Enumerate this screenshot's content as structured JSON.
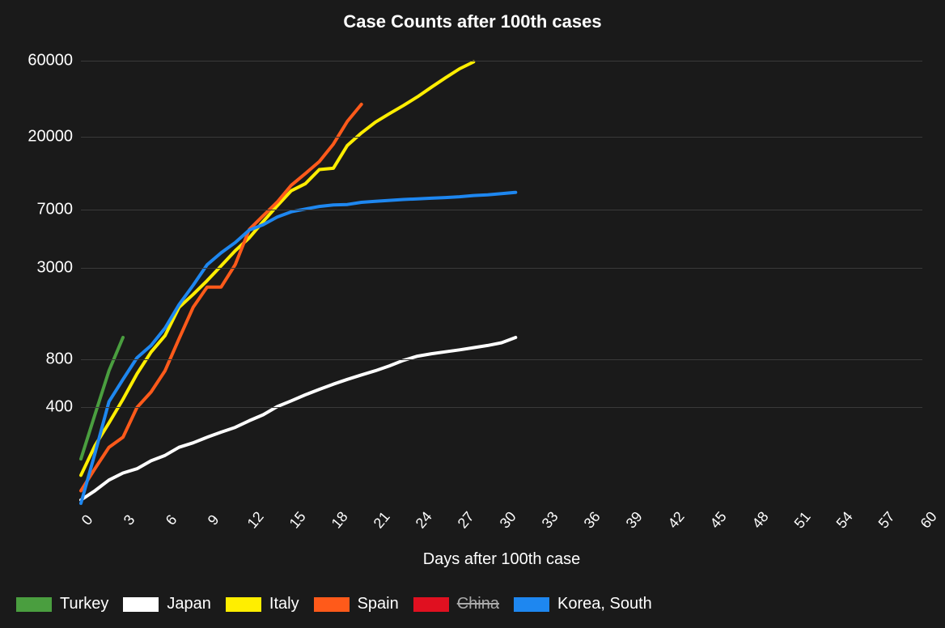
{
  "chart": {
    "type": "line",
    "title": "Case Counts after 100th cases",
    "title_fontsize": 22,
    "title_fontweight": 700,
    "background_color": "#1a1a1a",
    "grid_color": "#3a3a3a",
    "text_color": "#ffffff",
    "line_width": 4,
    "x_axis": {
      "title": "Days after 100th case",
      "title_fontsize": 20,
      "tick_fontsize": 18,
      "min": 0,
      "max": 60,
      "tick_step": 3,
      "ticks": [
        0,
        3,
        6,
        9,
        12,
        15,
        18,
        21,
        24,
        27,
        30,
        33,
        36,
        39,
        42,
        45,
        48,
        51,
        54,
        57,
        60
      ],
      "tick_rotation_deg": -50
    },
    "y_axis": {
      "scale": "log",
      "tick_fontsize": 20,
      "ticks": [
        400,
        800,
        3000,
        7000,
        20000,
        60000
      ],
      "min": 100,
      "max": 70000
    },
    "legend": {
      "position": "bottom",
      "swatch_width": 44,
      "swatch_height": 18,
      "fontsize": 20,
      "items": [
        {
          "label": "Turkey",
          "color": "#4a9e3f",
          "enabled": true
        },
        {
          "label": "Japan",
          "color": "#ffffff",
          "enabled": true
        },
        {
          "label": "Italy",
          "color": "#ffee00",
          "enabled": true
        },
        {
          "label": "Spain",
          "color": "#ff5a1a",
          "enabled": true
        },
        {
          "label": "China",
          "color": "#e01020",
          "enabled": false
        },
        {
          "label": "Korea, South",
          "color": "#1e87f0",
          "enabled": true
        }
      ]
    },
    "series": [
      {
        "name": "Turkey",
        "color": "#4a9e3f",
        "x": [
          0,
          1,
          2,
          3
        ],
        "y": [
          190,
          360,
          680,
          1100
        ]
      },
      {
        "name": "Japan",
        "color": "#ffffff",
        "x": [
          0,
          1,
          2,
          3,
          4,
          5,
          6,
          7,
          8,
          9,
          10,
          11,
          12,
          13,
          14,
          15,
          16,
          17,
          18,
          19,
          20,
          21,
          22,
          23,
          24,
          25,
          26,
          27,
          28,
          29,
          30,
          31
        ],
        "y": [
          105,
          120,
          140,
          155,
          165,
          185,
          200,
          225,
          240,
          260,
          280,
          300,
          330,
          360,
          405,
          440,
          480,
          520,
          560,
          600,
          640,
          680,
          730,
          790,
          840,
          870,
          895,
          920,
          950,
          980,
          1020,
          1100
        ]
      },
      {
        "name": "Italy",
        "color": "#ffee00",
        "x": [
          0,
          1,
          2,
          3,
          4,
          5,
          6,
          7,
          8,
          9,
          10,
          11,
          12,
          13,
          14,
          15,
          16,
          17,
          18,
          19,
          20,
          21,
          22,
          23,
          24,
          25,
          26,
          27,
          28
        ],
        "y": [
          150,
          230,
          320,
          450,
          650,
          890,
          1130,
          1700,
          2050,
          2500,
          3100,
          3850,
          4640,
          5880,
          7380,
          9170,
          10150,
          12460,
          12700,
          17660,
          21150,
          24750,
          27980,
          31500,
          35700,
          41000,
          47000,
          53500,
          59100
        ]
      },
      {
        "name": "Spain",
        "color": "#ff5a1a",
        "x": [
          0,
          1,
          2,
          3,
          4,
          5,
          6,
          7,
          8,
          9,
          10,
          11,
          12,
          13,
          14,
          15,
          16,
          17,
          18,
          19,
          20
        ],
        "y": [
          120,
          165,
          225,
          260,
          400,
          500,
          680,
          1080,
          1700,
          2280,
          2280,
          3150,
          5230,
          6390,
          7800,
          9940,
          11750,
          14000,
          18000,
          25000,
          32000
        ]
      },
      {
        "name": "Korea, South",
        "color": "#1e87f0",
        "x": [
          0,
          1,
          2,
          3,
          4,
          5,
          6,
          7,
          8,
          9,
          10,
          11,
          12,
          13,
          14,
          15,
          16,
          17,
          18,
          19,
          20,
          21,
          22,
          23,
          24,
          25,
          26,
          27,
          28,
          29,
          30,
          31
        ],
        "y": [
          100,
          205,
          435,
          600,
          820,
          980,
          1260,
          1770,
          2340,
          3150,
          3740,
          4340,
          5190,
          5620,
          6280,
          6770,
          7040,
          7310,
          7480,
          7520,
          7760,
          7870,
          7980,
          8090,
          8160,
          8240,
          8320,
          8410,
          8560,
          8650,
          8800,
          8960
        ]
      }
    ]
  }
}
